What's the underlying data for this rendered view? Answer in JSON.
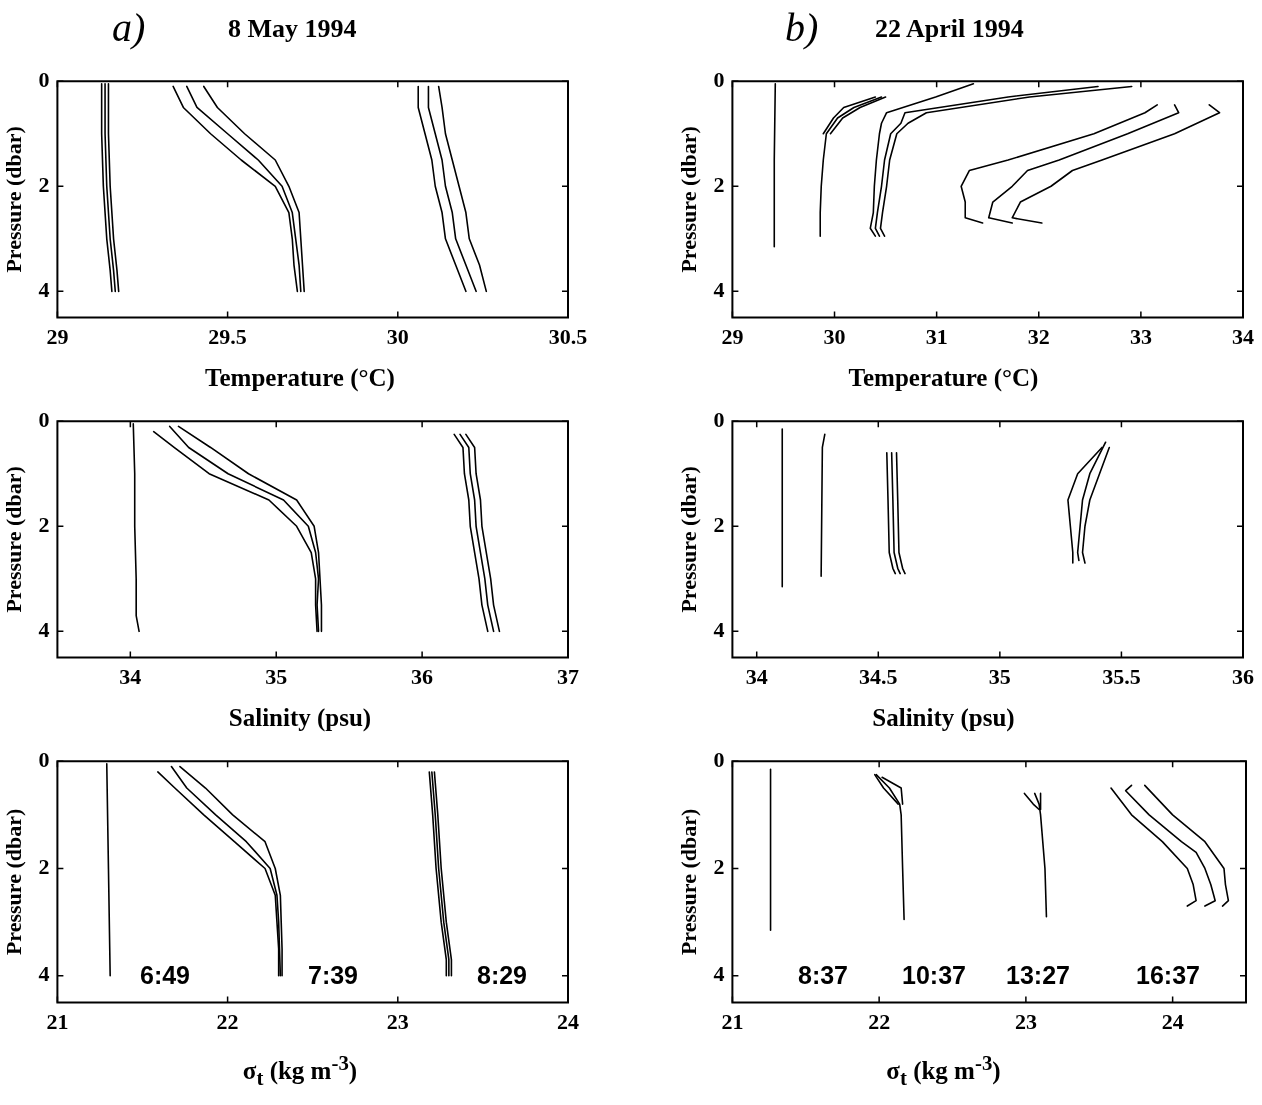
{
  "chart_data": [
    {
      "type": "line",
      "title": "8 May 1994",
      "annotations": [
        "a)"
      ],
      "xlabel": "Temperature (°C)",
      "ylabel": "Pressure (dbar)",
      "xlim": [
        29,
        30.5
      ],
      "xticks": [
        29,
        29.5,
        30,
        30.5
      ],
      "ylim": [
        4.5,
        0
      ],
      "yticks": [
        0,
        2,
        4
      ],
      "series": [
        {
          "color": "#000000",
          "x": [
            29.14,
            29.14,
            29.145,
            29.155,
            29.165,
            29.17
          ],
          "values": [
            0.05,
            1,
            2,
            3,
            3.6,
            4
          ]
        },
        {
          "color": "#000000",
          "x": [
            29.13,
            29.13,
            29.135,
            29.145,
            29.155,
            29.16
          ],
          "values": [
            0.05,
            1,
            2,
            3,
            3.6,
            4
          ]
        },
        {
          "color": "#000000",
          "x": [
            29.15,
            29.15,
            29.155,
            29.165,
            29.175,
            29.18
          ],
          "values": [
            0.05,
            1,
            2,
            3,
            3.6,
            4
          ]
        },
        {
          "color": "#000000",
          "x": [
            29.38,
            29.41,
            29.5,
            29.59,
            29.66,
            29.69,
            29.7,
            29.71,
            29.715
          ],
          "values": [
            0.1,
            0.5,
            1,
            1.5,
            2,
            2.5,
            3,
            3.5,
            4
          ]
        },
        {
          "color": "#000000",
          "x": [
            29.34,
            29.37,
            29.45,
            29.54,
            29.64,
            29.68,
            29.69,
            29.695,
            29.705
          ],
          "values": [
            0.1,
            0.5,
            1,
            1.5,
            2,
            2.5,
            3,
            3.5,
            4
          ]
        },
        {
          "color": "#000000",
          "x": [
            29.43,
            29.47,
            29.55,
            29.64,
            29.68,
            29.71,
            29.715,
            29.72,
            29.725
          ],
          "values": [
            0.1,
            0.5,
            1,
            1.5,
            2,
            2.5,
            3,
            3.5,
            4
          ]
        },
        {
          "color": "#000000",
          "x": [
            30.09,
            30.09,
            30.11,
            30.13,
            30.14,
            30.16,
            30.17,
            30.2,
            30.23
          ],
          "values": [
            0.1,
            0.5,
            1,
            1.5,
            2,
            2.5,
            3,
            3.5,
            4
          ]
        },
        {
          "color": "#000000",
          "x": [
            30.06,
            30.06,
            30.08,
            30.1,
            30.11,
            30.13,
            30.14,
            30.17,
            30.2
          ],
          "values": [
            0.1,
            0.5,
            1,
            1.5,
            2,
            2.5,
            3,
            3.5,
            4
          ]
        },
        {
          "color": "#000000",
          "x": [
            30.12,
            30.13,
            30.14,
            30.16,
            30.18,
            30.2,
            30.21,
            30.24,
            30.26
          ],
          "values": [
            0.1,
            0.5,
            1,
            1.5,
            2,
            2.5,
            3,
            3.5,
            4
          ]
        }
      ]
    },
    {
      "type": "line",
      "title": "22 April 1994",
      "annotations": [
        "b)"
      ],
      "xlabel": "Temperature (°C)",
      "ylabel": "Pressure (dbar)",
      "xlim": [
        29,
        34
      ],
      "xticks": [
        29,
        30,
        31,
        32,
        33,
        34
      ],
      "ylim": [
        4.5,
        0
      ],
      "yticks": [
        0,
        2,
        4
      ],
      "series": [
        {
          "color": "#000000",
          "x": [
            29.42,
            29.41,
            29.41
          ],
          "values": [
            0.05,
            1.5,
            3.15
          ]
        },
        {
          "color": "#000000",
          "x": [
            30.46,
            30.19,
            30.03,
            29.92,
            29.89,
            29.87,
            29.86,
            29.86
          ],
          "values": [
            0.3,
            0.5,
            0.7,
            1,
            1.5,
            2,
            2.5,
            2.95
          ]
        },
        {
          "color": "#000000",
          "x": [
            30.4,
            30.09,
            29.99,
            29.89
          ],
          "values": [
            0.3,
            0.5,
            0.7,
            1
          ]
        },
        {
          "color": "#000000",
          "x": [
            30.5,
            30.25,
            30.08,
            29.96
          ],
          "values": [
            0.3,
            0.5,
            0.7,
            1
          ]
        },
        {
          "color": "#000000",
          "x": [
            32.58,
            31.7,
            30.69,
            30.65,
            30.55,
            30.49,
            30.46,
            30.42,
            30.4,
            30.44
          ],
          "values": [
            0.1,
            0.3,
            0.6,
            0.8,
            1,
            1.5,
            2,
            2.5,
            2.8,
            2.95
          ]
        },
        {
          "color": "#000000",
          "x": [
            31.36,
            30.99,
            30.51,
            30.46,
            30.44,
            30.41,
            30.39,
            30.38,
            30.35,
            30.4
          ],
          "values": [
            0.05,
            0.3,
            0.6,
            0.8,
            1,
            1.5,
            2,
            2.5,
            2.8,
            2.95
          ]
        },
        {
          "color": "#000000",
          "x": [
            32.91,
            31.91,
            30.9,
            30.72,
            30.61,
            30.54,
            30.51,
            30.47,
            30.45,
            30.49
          ],
          "values": [
            0.1,
            0.3,
            0.6,
            0.8,
            1,
            1.5,
            2,
            2.5,
            2.8,
            2.95
          ]
        },
        {
          "color": "#000000",
          "x": [
            33.33,
            33.37,
            32.87,
            32.2,
            31.89,
            31.74,
            31.55,
            31.51,
            31.74
          ],
          "values": [
            0.45,
            0.6,
            1,
            1.5,
            1.7,
            2,
            2.3,
            2.6,
            2.7
          ]
        },
        {
          "color": "#000000",
          "x": [
            33.16,
            33.04,
            32.54,
            31.7,
            31.32,
            31.24,
            31.28,
            31.28,
            31.45
          ],
          "values": [
            0.45,
            0.6,
            1,
            1.5,
            1.7,
            2,
            2.3,
            2.6,
            2.7
          ]
        },
        {
          "color": "#000000",
          "x": [
            33.67,
            33.77,
            33.33,
            32.62,
            32.33,
            32.12,
            31.82,
            31.74,
            32.03
          ],
          "values": [
            0.45,
            0.6,
            1,
            1.5,
            1.7,
            2,
            2.3,
            2.6,
            2.7
          ]
        }
      ]
    },
    {
      "type": "line",
      "xlabel": "Salinity (psu)",
      "ylabel": "Pressure (dbar)",
      "xlim": [
        33.5,
        37
      ],
      "xticks": [
        34,
        35,
        36,
        37
      ],
      "ylim": [
        4.5,
        0
      ],
      "yticks": [
        0,
        2,
        4
      ],
      "series": [
        {
          "color": "#000000",
          "x": [
            34.02,
            34.03,
            34.03,
            34.04,
            34.04,
            34.06
          ],
          "values": [
            0.05,
            1,
            2,
            3,
            3.7,
            4
          ]
        },
        {
          "color": "#000000",
          "x": [
            34.27,
            34.4,
            34.67,
            35.05,
            35.22,
            35.27,
            35.29,
            35.28,
            35.29
          ],
          "values": [
            0.1,
            0.5,
            1,
            1.5,
            2,
            2.5,
            3,
            3.5,
            4
          ]
        },
        {
          "color": "#000000",
          "x": [
            34.16,
            34.3,
            34.54,
            34.95,
            35.14,
            35.24,
            35.27,
            35.27,
            35.28
          ],
          "values": [
            0.2,
            0.5,
            1,
            1.5,
            2,
            2.5,
            3,
            3.5,
            4
          ]
        },
        {
          "color": "#000000",
          "x": [
            34.33,
            34.55,
            34.81,
            35.14,
            35.26,
            35.29,
            35.3,
            35.31,
            35.31
          ],
          "values": [
            0.1,
            0.5,
            1,
            1.5,
            2,
            2.5,
            3,
            3.5,
            4
          ]
        },
        {
          "color": "#000000",
          "x": [
            36.26,
            36.32,
            36.33,
            36.36,
            36.37,
            36.4,
            36.43,
            36.45,
            36.49
          ],
          "values": [
            0.25,
            0.5,
            1,
            1.5,
            2,
            2.5,
            3,
            3.5,
            4
          ]
        },
        {
          "color": "#000000",
          "x": [
            36.22,
            36.28,
            36.29,
            36.32,
            36.33,
            36.36,
            36.39,
            36.41,
            36.45
          ],
          "values": [
            0.25,
            0.5,
            1,
            1.5,
            2,
            2.5,
            3,
            3.5,
            4
          ]
        },
        {
          "color": "#000000",
          "x": [
            36.3,
            36.36,
            36.37,
            36.4,
            36.41,
            36.44,
            36.47,
            36.49,
            36.53
          ],
          "values": [
            0.25,
            0.5,
            1,
            1.5,
            2,
            2.5,
            3,
            3.5,
            4
          ]
        }
      ]
    },
    {
      "type": "line",
      "xlabel": "Salinity (psu)",
      "ylabel": "Pressure (dbar)",
      "xlim": [
        33.9,
        36
      ],
      "xticks": [
        34,
        34.5,
        35,
        35.5,
        36
      ],
      "ylim": [
        4.5,
        0
      ],
      "yticks": [
        0,
        2,
        4
      ],
      "series": [
        {
          "color": "#000000",
          "x": [
            34.105,
            34.105
          ],
          "values": [
            0.15,
            3.15
          ]
        },
        {
          "color": "#000000",
          "x": [
            34.28,
            34.27,
            34.265
          ],
          "values": [
            0.25,
            0.5,
            2.95
          ]
        },
        {
          "color": "#000000",
          "x": [
            34.555,
            34.56,
            34.565,
            34.58,
            34.59
          ],
          "values": [
            0.6,
            1.5,
            2.5,
            2.8,
            2.9
          ]
        },
        {
          "color": "#000000",
          "x": [
            34.535,
            34.54,
            34.545,
            34.56,
            34.57
          ],
          "values": [
            0.6,
            1.5,
            2.5,
            2.8,
            2.9
          ]
        },
        {
          "color": "#000000",
          "x": [
            34.575,
            34.58,
            34.585,
            34.6,
            34.61
          ],
          "values": [
            0.6,
            1.5,
            2.5,
            2.8,
            2.9
          ]
        },
        {
          "color": "#000000",
          "x": [
            35.435,
            35.37,
            35.34,
            35.33,
            35.32,
            35.325
          ],
          "values": [
            0.4,
            1,
            1.5,
            2,
            2.5,
            2.65
          ]
        },
        {
          "color": "#000000",
          "x": [
            35.42,
            35.32,
            35.28,
            35.29,
            35.3,
            35.3
          ],
          "values": [
            0.5,
            1,
            1.5,
            2,
            2.5,
            2.7
          ]
        },
        {
          "color": "#000000",
          "x": [
            35.45,
            35.41,
            35.37,
            35.35,
            35.34,
            35.35
          ],
          "values": [
            0.5,
            1,
            1.5,
            2,
            2.5,
            2.7
          ]
        }
      ]
    },
    {
      "type": "line",
      "xlabel": "σ$_{t}$ (kg m$^{-3}$)",
      "ylabel": "Pressure (dbar)",
      "xlim": [
        21,
        24
      ],
      "xticks": [
        21,
        22,
        23,
        24
      ],
      "ylim": [
        4.5,
        0
      ],
      "yticks": [
        0,
        2,
        4
      ],
      "annotations": [
        "6:49",
        "7:39",
        "8:29"
      ],
      "series": [
        {
          "color": "#000000",
          "x": [
            21.29,
            21.3,
            21.31
          ],
          "values": [
            0.05,
            2,
            4
          ]
        },
        {
          "color": "#000000",
          "x": [
            21.67,
            21.76,
            21.93,
            22.11,
            22.25,
            22.29,
            22.3,
            22.305,
            22.31
          ],
          "values": [
            0.1,
            0.5,
            1,
            1.5,
            2,
            2.5,
            3,
            3.5,
            4
          ]
        },
        {
          "color": "#000000",
          "x": [
            21.59,
            21.69,
            21.86,
            22.04,
            22.22,
            22.28,
            22.29,
            22.3,
            22.3
          ],
          "values": [
            0.2,
            0.5,
            1,
            1.5,
            2,
            2.5,
            3,
            3.5,
            4
          ]
        },
        {
          "color": "#000000",
          "x": [
            21.72,
            21.87,
            22.03,
            22.22,
            22.28,
            22.31,
            22.315,
            22.32,
            22.32
          ],
          "values": [
            0.1,
            0.5,
            1,
            1.5,
            2,
            2.5,
            3,
            3.5,
            4
          ]
        },
        {
          "color": "#000000",
          "x": [
            23.2,
            23.22,
            23.24,
            23.27,
            23.3,
            23.3
          ],
          "values": [
            0.2,
            1,
            2,
            3,
            3.7,
            4
          ]
        },
        {
          "color": "#000000",
          "x": [
            23.185,
            23.205,
            23.225,
            23.255,
            23.285,
            23.285
          ],
          "values": [
            0.2,
            1,
            2,
            3,
            3.7,
            4
          ]
        },
        {
          "color": "#000000",
          "x": [
            23.215,
            23.235,
            23.255,
            23.285,
            23.315,
            23.315
          ],
          "values": [
            0.2,
            1,
            2,
            3,
            3.7,
            4
          ]
        }
      ]
    },
    {
      "type": "line",
      "xlabel": "σ$_{t}$ (kg m$^{-3}$)",
      "ylabel": "Pressure (dbar)",
      "xlim": [
        21,
        24.5
      ],
      "xticks": [
        21,
        22,
        23,
        24
      ],
      "ylim": [
        4.5,
        0
      ],
      "yticks": [
        0,
        2,
        4
      ],
      "annotations": [
        "8:37",
        "10:37",
        "13:27",
        "16:37"
      ],
      "series": [
        {
          "color": "#000000",
          "x": [
            21.26,
            21.26
          ],
          "values": [
            0.15,
            3.15
          ]
        },
        {
          "color": "#000000",
          "x": [
            21.98,
            22.07,
            22.14,
            22.15,
            22.16,
            22.17
          ],
          "values": [
            0.25,
            0.5,
            0.8,
            1,
            2,
            2.95
          ]
        },
        {
          "color": "#000000",
          "x": [
            21.97,
            22.03,
            22.13
          ],
          "values": [
            0.25,
            0.5,
            0.8
          ]
        },
        {
          "color": "#000000",
          "x": [
            22.02,
            22.15,
            22.16
          ],
          "values": [
            0.3,
            0.5,
            0.8
          ]
        },
        {
          "color": "#000000",
          "x": [
            23.06,
            23.09,
            23.1,
            23.13,
            23.14
          ],
          "values": [
            0.6,
            0.8,
            1,
            2,
            2.9
          ]
        },
        {
          "color": "#000000",
          "x": [
            22.99,
            23.05,
            23.09
          ],
          "values": [
            0.6,
            0.8,
            0.9
          ]
        },
        {
          "color": "#000000",
          "x": [
            23.1,
            23.1,
            23.1
          ],
          "values": [
            0.6,
            0.8,
            0.9
          ]
        },
        {
          "color": "#000000",
          "x": [
            23.72,
            23.68,
            23.84,
            24.06,
            24.16,
            24.22,
            24.26,
            24.28,
            24.29,
            24.22
          ],
          "values": [
            0.45,
            0.55,
            1,
            1.5,
            1.7,
            2,
            2.3,
            2.5,
            2.6,
            2.7
          ]
        },
        {
          "color": "#000000",
          "x": [
            23.58,
            23.72,
            23.93,
            24.1,
            24.14,
            24.16,
            24.1
          ],
          "values": [
            0.5,
            1,
            1.5,
            2,
            2.3,
            2.6,
            2.7
          ]
        },
        {
          "color": "#000000",
          "x": [
            23.81,
            24,
            24.22,
            24.35,
            24.36,
            24.38,
            24.34
          ],
          "values": [
            0.45,
            1,
            1.5,
            2,
            2.3,
            2.6,
            2.7
          ]
        }
      ]
    }
  ]
}
